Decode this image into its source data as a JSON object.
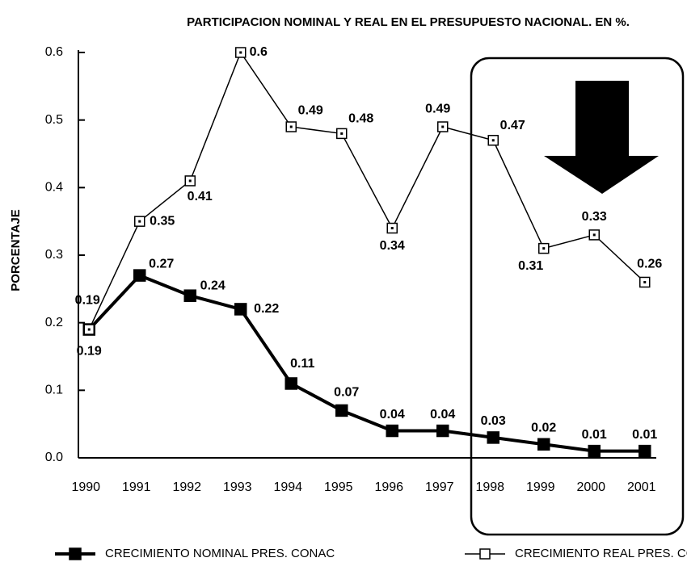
{
  "chart_data": {
    "type": "line",
    "title": "PARTICIPACION NOMINAL Y REAL EN EL PRESUPUESTO NACIONAL. EN %.",
    "y_label": "PORCENTAJE",
    "categories": [
      "1990",
      "1991",
      "1992",
      "1993",
      "1994",
      "1995",
      "1996",
      "1997",
      "1998",
      "1999",
      "2000",
      "2001"
    ],
    "series": [
      {
        "name": "CRECIMIENTO NOMINAL PRES. CONAC",
        "color": "#000000",
        "marker_fill": "#000000",
        "values": [
          0.19,
          0.27,
          0.24,
          0.22,
          0.11,
          0.07,
          0.04,
          0.04,
          0.03,
          0.02,
          0.01,
          0.01
        ]
      },
      {
        "name": "CRECIMIENTO REAL PRES. CONAC",
        "color": "#000000",
        "marker_fill": "#ffffff",
        "values": [
          0.19,
          0.35,
          0.41,
          0.6,
          0.49,
          0.48,
          0.34,
          0.49,
          0.47,
          0.31,
          0.33,
          0.26
        ]
      }
    ],
    "ylim": [
      0,
      0.6
    ],
    "yticks": [
      {
        "value": 0,
        "label": "0.0"
      },
      0.1,
      0.2,
      0.3,
      0.4,
      0.5,
      0.6
    ],
    "grid": false
  }
}
